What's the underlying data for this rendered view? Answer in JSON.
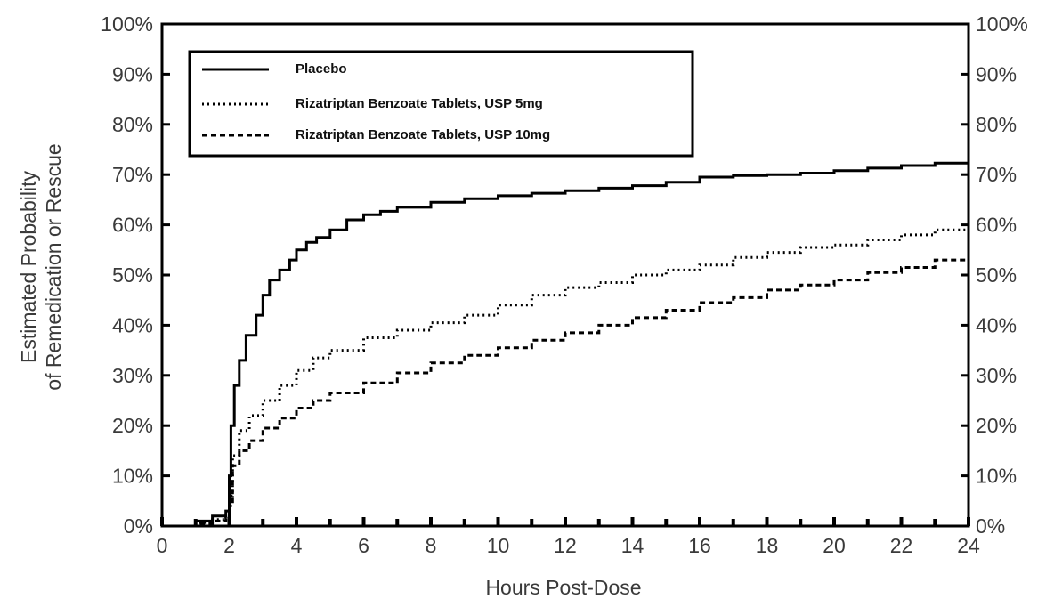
{
  "chart_data": {
    "type": "line",
    "xlabel": "Hours Post-Dose",
    "ylabel_line1": "Estimated Probability",
    "ylabel_line2": "of Remedication or Rescue",
    "xlim": [
      0,
      24
    ],
    "ylim": [
      0,
      100
    ],
    "x_ticks": [
      "0",
      "2",
      "4",
      "6",
      "8",
      "10",
      "12",
      "14",
      "16",
      "18",
      "20",
      "22",
      "24"
    ],
    "y_ticks": [
      "0%",
      "10%",
      "20%",
      "30%",
      "40%",
      "50%",
      "60%",
      "70%",
      "80%",
      "90%",
      "100%"
    ],
    "legend_position": "top-left",
    "grid": false,
    "series": [
      {
        "name": "Placebo",
        "style": "solid",
        "color": "#000000",
        "x": [
          0.4,
          1.0,
          1.5,
          1.9,
          2.0,
          2.05,
          2.15,
          2.3,
          2.5,
          2.8,
          3.0,
          3.2,
          3.5,
          3.8,
          4.0,
          4.3,
          4.6,
          5.0,
          5.5,
          6.0,
          6.5,
          7.0,
          8.0,
          9.0,
          10.0,
          11.0,
          12.0,
          13.0,
          14.0,
          15.0,
          16.0,
          17.0,
          18.0,
          19.0,
          20.0,
          21.0,
          22.0,
          23.0,
          24.0
        ],
        "y": [
          0,
          1,
          2,
          3,
          10,
          20,
          28,
          33,
          38,
          42,
          46,
          49,
          51,
          53,
          55,
          56.5,
          57.5,
          59,
          61,
          62,
          62.7,
          63.5,
          64.5,
          65.2,
          65.8,
          66.3,
          66.8,
          67.3,
          67.8,
          68.5,
          69.5,
          69.8,
          70,
          70.3,
          70.8,
          71.3,
          71.8,
          72.3,
          72.8
        ]
      },
      {
        "name": "Rizatriptan Benzoate Tablets, USP 5mg",
        "style": "dotted",
        "color": "#000000",
        "x": [
          0.4,
          1.0,
          1.5,
          1.9,
          2.0,
          2.1,
          2.3,
          2.6,
          3.0,
          3.5,
          4.0,
          4.5,
          5.0,
          6.0,
          7.0,
          8.0,
          9.0,
          10.0,
          11.0,
          12.0,
          13.0,
          14.0,
          15.0,
          16.0,
          17.0,
          18.0,
          19.0,
          20.0,
          21.0,
          22.0,
          23.0,
          24.0
        ],
        "y": [
          0,
          0.7,
          1.3,
          2,
          6,
          14,
          19,
          22,
          25,
          28,
          31,
          33.5,
          35,
          37.5,
          39,
          40.5,
          42,
          44,
          46,
          47.5,
          48.5,
          50,
          51,
          52,
          53.5,
          54.5,
          55.5,
          56,
          57,
          58,
          59,
          60
        ]
      },
      {
        "name": "Rizatriptan Benzoate Tablets, USP 10mg",
        "style": "dashed",
        "color": "#000000",
        "x": [
          0.4,
          1.0,
          1.5,
          1.9,
          2.0,
          2.1,
          2.3,
          2.6,
          3.0,
          3.5,
          4.0,
          4.5,
          5.0,
          6.0,
          7.0,
          8.0,
          9.0,
          10.0,
          11.0,
          12.0,
          13.0,
          14.0,
          15.0,
          16.0,
          17.0,
          18.0,
          19.0,
          20.0,
          21.0,
          22.0,
          23.0,
          24.0
        ],
        "y": [
          0,
          0.5,
          1,
          1.5,
          4,
          12,
          15,
          17,
          19.5,
          21.5,
          23.5,
          25,
          26.5,
          28.5,
          30.5,
          32.5,
          34,
          35.5,
          37,
          38.5,
          40,
          41.5,
          43,
          44.5,
          45.5,
          47,
          48,
          49,
          50.5,
          51.5,
          53,
          55
        ]
      }
    ]
  }
}
